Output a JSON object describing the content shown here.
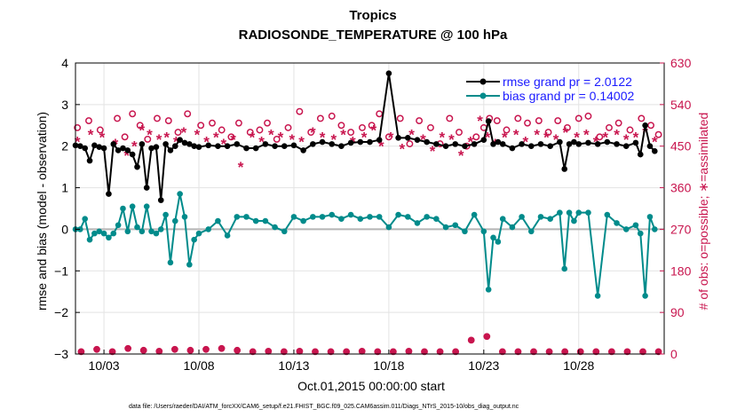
{
  "chart_data": {
    "type": "line",
    "title": "Tropics",
    "subtitle": "RADIOSONDE_TEMPERATURE @ 100 hPa",
    "xlabel": "Oct.01,2015 00:00:00 start",
    "ylabel": "rmse and bias (model - observation)",
    "y2label": "# of obs: o=possible; ∗=assimilated",
    "footnote": "data file: /Users/raeder/DAI/ATM_forcXX/CAM6_setup/f.e21.FHIST_BGC.f09_025.CAM6assim.011/Diags_NTrS_2015-10/obs_diag_output.nc",
    "xlim": [
      1.5,
      32.5
    ],
    "ylim": [
      -3,
      4
    ],
    "y2lim": [
      0,
      630
    ],
    "xticks": [
      3,
      8,
      13,
      18,
      23,
      28
    ],
    "xtick_labels": [
      "10/03",
      "10/08",
      "10/13",
      "10/18",
      "10/23",
      "10/28"
    ],
    "yticks": [
      -3,
      -2,
      -1,
      0,
      1,
      2,
      3,
      4
    ],
    "ytick_labels": [
      "−3",
      "−2",
      "−1",
      "0",
      "1",
      "2",
      "3",
      "4"
    ],
    "y2ticks": [
      0,
      90,
      180,
      270,
      360,
      450,
      540,
      630
    ],
    "y2tick_labels": [
      "0",
      "90",
      "180",
      "270",
      "360",
      "450",
      "540",
      "630"
    ],
    "x": [
      1.5,
      1.75,
      2,
      2.25,
      2.5,
      2.75,
      3,
      3.25,
      3.5,
      3.75,
      4,
      4.25,
      4.5,
      4.75,
      5,
      5.25,
      5.5,
      5.75,
      6,
      6.25,
      6.5,
      6.75,
      7,
      7.25,
      7.5,
      7.75,
      8,
      8.5,
      9,
      9.5,
      10,
      10.5,
      11,
      11.5,
      12,
      12.5,
      13,
      13.5,
      14,
      14.5,
      15,
      15.5,
      16,
      16.5,
      17,
      17.5,
      18,
      18.5,
      19,
      19.5,
      20,
      20.5,
      21,
      21.5,
      22,
      22.5,
      23,
      23.25,
      23.5,
      23.75,
      24,
      24.5,
      25,
      25.5,
      26,
      26.5,
      27,
      27.25,
      27.5,
      27.75,
      28,
      28.5,
      29,
      29.5,
      30,
      30.5,
      31,
      31.25,
      31.5,
      31.75,
      32
    ],
    "series": [
      {
        "name": "rmse grand pr = 2.0122",
        "color": "#000000",
        "values": [
          2.02,
          2.0,
          1.95,
          1.65,
          2.02,
          1.98,
          1.95,
          0.85,
          2.05,
          1.9,
          1.95,
          1.9,
          1.8,
          1.5,
          2.05,
          1.0,
          1.95,
          1.98,
          0.7,
          2.05,
          1.9,
          2.0,
          2.15,
          2.08,
          2.05,
          2.0,
          1.98,
          2.02,
          2.0,
          2.0,
          2.05,
          1.95,
          1.95,
          2.05,
          2.0,
          2.0,
          2.02,
          1.9,
          2.05,
          2.1,
          2.05,
          2.0,
          2.08,
          2.1,
          2.1,
          2.15,
          3.75,
          2.2,
          2.2,
          2.15,
          2.1,
          2.05,
          2.0,
          2.05,
          2.0,
          2.05,
          2.15,
          2.6,
          2.05,
          2.1,
          2.05,
          1.95,
          2.05,
          2.0,
          2.05,
          2.0,
          2.1,
          1.45,
          2.05,
          2.1,
          2.05,
          2.08,
          2.05,
          2.1,
          2.05,
          2.0,
          2.08,
          1.8,
          2.5,
          2.0,
          1.88
        ]
      },
      {
        "name": "bias grand pr = 0.14002",
        "color": "#008b8b",
        "values": [
          0.0,
          0.0,
          0.25,
          -0.25,
          -0.1,
          -0.05,
          -0.1,
          -0.2,
          -0.1,
          0.1,
          0.5,
          -0.05,
          0.55,
          0.05,
          -0.05,
          0.55,
          -0.05,
          -0.1,
          0.0,
          0.35,
          -0.8,
          0.2,
          0.85,
          0.3,
          -0.85,
          -0.25,
          -0.1,
          0.0,
          0.2,
          -0.15,
          0.3,
          0.3,
          0.2,
          0.2,
          0.05,
          -0.05,
          0.3,
          0.2,
          0.3,
          0.3,
          0.35,
          0.25,
          0.35,
          0.25,
          0.3,
          0.3,
          0.05,
          0.35,
          0.3,
          0.15,
          0.3,
          0.25,
          0.05,
          0.1,
          -0.05,
          0.35,
          -0.05,
          -1.45,
          -0.2,
          -0.3,
          0.25,
          0.05,
          0.3,
          -0.05,
          0.3,
          0.25,
          0.4,
          -0.95,
          0.4,
          0.2,
          0.4,
          0.4,
          -1.6,
          0.35,
          0.15,
          0.0,
          0.1,
          -0.1,
          -1.6,
          0.3,
          0.0
        ]
      },
      {
        "name": "possible",
        "color": "#c8154e",
        "values": [
          15,
          15,
          15,
          15,
          15,
          15,
          15,
          15,
          15,
          15,
          15,
          15,
          15,
          15,
          15,
          15,
          15,
          15,
          15,
          15,
          15,
          15,
          15,
          15,
          15,
          15,
          15,
          15,
          15,
          15,
          15,
          15,
          15,
          15,
          15,
          15,
          15,
          15,
          15,
          15,
          15,
          15,
          15,
          15,
          15,
          15,
          15,
          15,
          15,
          15,
          15,
          15,
          15,
          15,
          15,
          15,
          15,
          15,
          15,
          15,
          15,
          15,
          15,
          15,
          15,
          15,
          15,
          15,
          15,
          15,
          15,
          15,
          15,
          15,
          15,
          15,
          15,
          15,
          15,
          15,
          15
        ]
      }
    ],
    "rmse_x": [
      1.5,
      1.75,
      2,
      2.25,
      2.5,
      2.75,
      3,
      3.25,
      3.5,
      3.75,
      4,
      4.25,
      4.5,
      4.75,
      5,
      5.25,
      5.5,
      5.75,
      6,
      6.25,
      6.5,
      6.75,
      7,
      7.25,
      7.5,
      7.75,
      8,
      8.5,
      9,
      9.5,
      10,
      10.5,
      11,
      11.5,
      12,
      12.5,
      13,
      13.5,
      14,
      14.5,
      15,
      15.5,
      16,
      16.5,
      17,
      17.5,
      18,
      18.5,
      19,
      19.5,
      20,
      20.5,
      21,
      21.5,
      22,
      22.5,
      23,
      23.25,
      23.5,
      23.75,
      24,
      24.5,
      25,
      25.5,
      26,
      26.5,
      27,
      27.25,
      27.5,
      27.75,
      28,
      28.5,
      29,
      29.5,
      30,
      30.5,
      31,
      31.25,
      31.5,
      31.75,
      32
    ],
    "obs_possible": {
      "x": [
        1.6,
        2.2,
        2.8,
        3.7,
        4.1,
        4.5,
        4.9,
        5.3,
        5.8,
        6.4,
        6.9,
        7.4,
        8.1,
        8.7,
        9.2,
        9.7,
        10.1,
        10.7,
        11.2,
        11.6,
        12.1,
        12.7,
        13.3,
        13.9,
        14.4,
        15.0,
        15.5,
        16.0,
        16.6,
        17.1,
        17.5,
        18.0,
        18.6,
        19.1,
        19.6,
        20.2,
        20.7,
        21.2,
        21.7,
        22.1,
        22.6,
        23.0,
        23.3,
        23.7,
        24.2,
        24.8,
        25.3,
        25.9,
        26.4,
        26.9,
        27.4,
        28.0,
        28.5,
        29.1,
        29.6,
        30.1,
        30.7,
        31.3,
        31.8,
        32.2
      ],
      "y": [
        490,
        505,
        485,
        510,
        470,
        520,
        495,
        465,
        510,
        505,
        480,
        520,
        495,
        500,
        485,
        470,
        500,
        480,
        485,
        500,
        465,
        490,
        525,
        480,
        510,
        515,
        495,
        480,
        490,
        495,
        520,
        470,
        510,
        455,
        505,
        490,
        455,
        510,
        480,
        450,
        470,
        490,
        510,
        505,
        485,
        510,
        500,
        505,
        480,
        505,
        490,
        510,
        515,
        470,
        490,
        500,
        485,
        510,
        495,
        475
      ]
    },
    "obs_assimilated": {
      "x": [
        1.6,
        2.3,
        2.9,
        3.6,
        4.2,
        4.6,
        5.0,
        5.4,
        5.9,
        6.3,
        6.8,
        7.2,
        7.9,
        8.4,
        8.9,
        9.3,
        9.8,
        10.2,
        10.8,
        11.3,
        11.8,
        12.3,
        12.9,
        13.4,
        14.0,
        14.5,
        15.1,
        15.6,
        16.1,
        16.7,
        17.2,
        17.6,
        18.1,
        18.7,
        19.2,
        19.8,
        20.3,
        20.8,
        21.3,
        21.8,
        22.3,
        22.8,
        23.2,
        23.6,
        24.1,
        24.7,
        25.2,
        25.8,
        26.3,
        26.8,
        27.3,
        27.9,
        28.4,
        28.9,
        29.4,
        30.0,
        30.5,
        31.0,
        31.5,
        32.0
      ],
      "y": [
        460,
        475,
        470,
        455,
        430,
        450,
        485,
        475,
        465,
        470,
        460,
        480,
        475,
        460,
        470,
        455,
        465,
        405,
        470,
        460,
        475,
        470,
        465,
        460,
        480,
        470,
        465,
        475,
        460,
        470,
        485,
        450,
        470,
        445,
        475,
        465,
        440,
        470,
        465,
        430,
        460,
        505,
        470,
        455,
        470,
        475,
        460,
        475,
        470,
        465,
        480,
        470,
        475,
        460,
        470,
        475,
        465,
        470,
        480,
        460
      ]
    },
    "obs_bottom_possible": [
      5,
      10,
      5,
      12,
      8,
      6,
      10,
      8,
      10,
      12,
      8,
      5,
      6,
      5,
      6,
      5,
      5,
      5,
      6,
      5,
      5,
      6,
      5,
      5,
      5,
      30,
      38,
      5,
      5,
      5,
      5,
      5,
      5,
      5,
      5,
      5,
      5,
      5
    ],
    "legend": {
      "position": "top-right",
      "entries": [
        "rmse grand pr = 2.0122",
        "bias grand pr = 0.14002"
      ]
    }
  }
}
